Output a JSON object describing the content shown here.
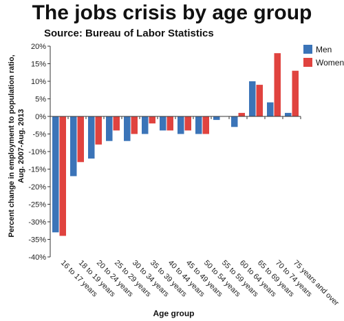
{
  "chart_data": {
    "type": "bar",
    "title": "The jobs crisis by age group",
    "subtitle": "Source: Bureau of Labor Statistics",
    "xlabel": "Age group",
    "ylabel_line1": "Percent change in employment to population ratio,",
    "ylabel_line2": "Aug. 2007-Aug. 2013",
    "ylim": [
      -40,
      20
    ],
    "yticks": [
      20,
      15,
      10,
      5,
      0,
      -5,
      -10,
      -15,
      -20,
      -25,
      -30,
      -35,
      -40
    ],
    "ytick_labels": [
      "20%",
      "15%",
      "10%",
      "5%",
      "0%",
      "-5%",
      "-10%",
      "-15%",
      "-20%",
      "-25%",
      "-30%",
      "-35%",
      "-40%"
    ],
    "grid": false,
    "legend_position": "top-right",
    "categories": [
      "16 to 17 years",
      "18 to 19 years",
      "20 to 24 years",
      "25 to 29 years",
      "30 to 34 years",
      "35 to 39 years",
      "40 to 44 years",
      "45 to 49 years",
      "50 to 54 years",
      "55 to 59 years",
      "60 to 64 years",
      "65 to 69 years",
      "70 to 74 years",
      "75 years and over"
    ],
    "series": [
      {
        "name": "Men",
        "color": "#3b74b8",
        "values": [
          -33,
          -17,
          -12,
          -7,
          -7,
          -5,
          -4,
          -5,
          -5,
          -1,
          -3,
          10,
          4,
          1
        ]
      },
      {
        "name": "Women",
        "color": "#e0433f",
        "values": [
          -34,
          -13,
          -8,
          -4,
          -5,
          -2,
          -4,
          -4,
          -5,
          0,
          1,
          9,
          18,
          13
        ]
      }
    ]
  }
}
